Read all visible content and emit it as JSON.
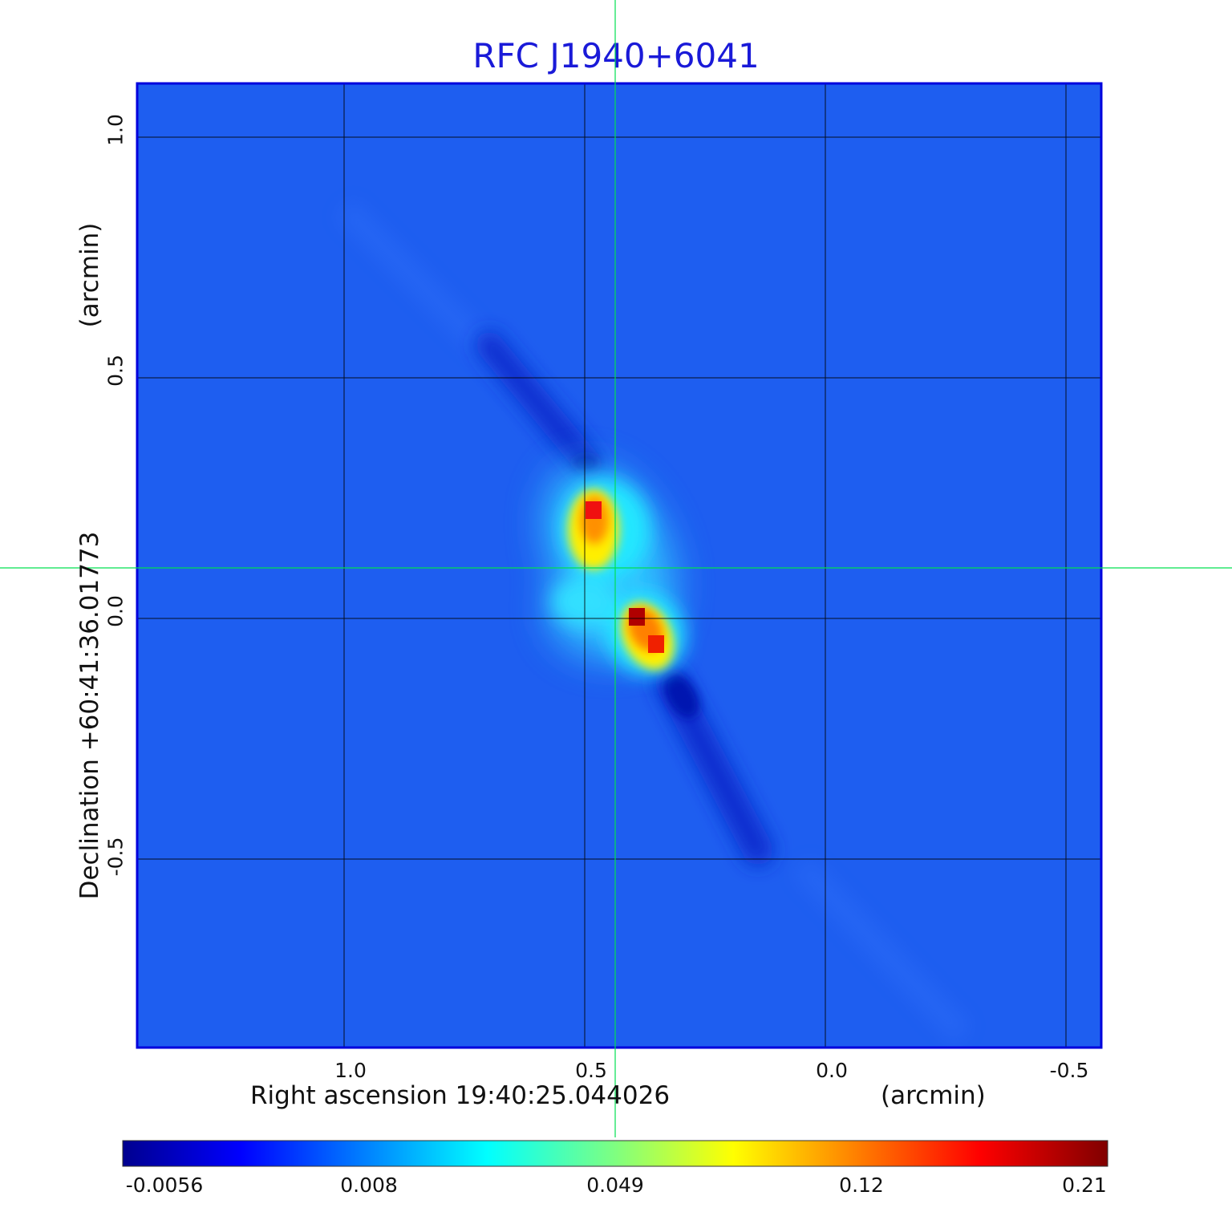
{
  "title": "RFC J1940+6041",
  "x_axis": {
    "label": "Right ascension  19:40:25.044026",
    "unit": "(arcmin)",
    "ticks": [
      "1.0",
      "0.5",
      "0.0",
      "-0.5"
    ],
    "tick_values": [
      1.0,
      0.5,
      0.0,
      -0.5
    ]
  },
  "y_axis": {
    "label": "Declination  +60:41:36.01773",
    "unit": "(arcmin)",
    "ticks": [
      "1.0",
      "0.5",
      "0.0",
      "-0.5"
    ],
    "tick_values": [
      1.0,
      0.5,
      0.0,
      -0.5
    ]
  },
  "colorbar": {
    "colormap": "jet",
    "ticks": [
      "-0.0056",
      "0.008",
      "0.049",
      "0.12",
      "0.21"
    ],
    "colors": [
      "#00008f",
      "#0000ff",
      "#00ffff",
      "#ffff00",
      "#ff0000",
      "#800000"
    ]
  },
  "image": {
    "background_color": "#1e5ef0",
    "grid_color": "#000000",
    "crosshair_color": "#00e050",
    "frame_color": "#0000dd"
  }
}
